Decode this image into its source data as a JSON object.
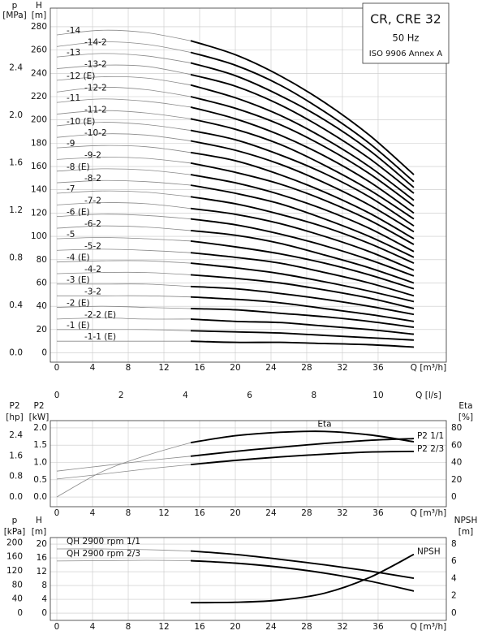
{
  "chart_data": [
    {
      "type": "line",
      "title": "CR, CRE 32",
      "subtitle": "50 Hz",
      "note": "ISO 9906 Annex A",
      "xlabel": "Q [m³/h]",
      "x": [
        0,
        5,
        10,
        15,
        20,
        25,
        30,
        35,
        40
      ],
      "xlim": [
        -0.73,
        43.64
      ],
      "xticks": [
        0,
        4,
        8,
        12,
        16,
        20,
        24,
        28,
        32,
        36
      ],
      "bold_from_x": 15,
      "grid": true,
      "color": "#000000",
      "thin_color": "#8a8a8a",
      "label_position": "stagger",
      "y_outer": {
        "label": "p",
        "unit": "[MPa]",
        "lim": [
          -0.0785,
          2.904
        ],
        "ticks": [
          {
            "value": 0,
            "label": "0.0"
          },
          0.4,
          0.8,
          1.2,
          1.6,
          {
            "value": 2,
            "label": "2.0"
          },
          2.4
        ]
      },
      "y": {
        "label": "H",
        "unit": "[m]",
        "lim": [
          -8,
          296
        ],
        "ticks": [
          0,
          20,
          40,
          60,
          80,
          100,
          120,
          140,
          160,
          180,
          200,
          220,
          240,
          260,
          280
        ]
      },
      "series": [
        {
          "name": "-14",
          "values": [
            273,
            277,
            275,
            268,
            256,
            238,
            215,
            187,
            153
          ]
        },
        {
          "name": "-14-2",
          "values": [
            263,
            267,
            265,
            258,
            247,
            230,
            207,
            180,
            147
          ]
        },
        {
          "name": "-13",
          "values": [
            254,
            257,
            255,
            249,
            238,
            221,
            200,
            174,
            142
          ]
        },
        {
          "name": "-13-2",
          "values": [
            244,
            247,
            246,
            239,
            229,
            213,
            192,
            167,
            137
          ]
        },
        {
          "name": "-12 (E)",
          "values": [
            234,
            237,
            236,
            230,
            219,
            204,
            184,
            160,
            131
          ]
        },
        {
          "name": "-12-2",
          "values": [
            224,
            228,
            226,
            220,
            210,
            196,
            177,
            154,
            126
          ]
        },
        {
          "name": "-11",
          "values": [
            215,
            218,
            216,
            211,
            201,
            187,
            169,
            147,
            120
          ]
        },
        {
          "name": "-11-2",
          "values": [
            205,
            208,
            206,
            201,
            192,
            179,
            161,
            140,
            115
          ]
        },
        {
          "name": "-10 (E)",
          "values": [
            195,
            198,
            196,
            191,
            183,
            170,
            154,
            134,
            109
          ]
        },
        {
          "name": "-10-2",
          "values": [
            185,
            188,
            187,
            182,
            174,
            162,
            146,
            127,
            104
          ]
        },
        {
          "name": "-9",
          "values": [
            176,
            178,
            177,
            172,
            165,
            153,
            138,
            120,
            98
          ]
        },
        {
          "name": "-9-2",
          "values": [
            166,
            168,
            167,
            163,
            155,
            145,
            131,
            114,
            93
          ]
        },
        {
          "name": "-8 (E)",
          "values": [
            156,
            158,
            157,
            153,
            146,
            136,
            123,
            107,
            87
          ]
        },
        {
          "name": "-8-2",
          "values": [
            146,
            148,
            147,
            144,
            137,
            128,
            115,
            100,
            82
          ]
        },
        {
          "name": "-7",
          "values": [
            137,
            139,
            138,
            134,
            128,
            119,
            108,
            94,
            77
          ]
        },
        {
          "name": "-7-2",
          "values": [
            127,
            129,
            128,
            124,
            119,
            111,
            100,
            87,
            71
          ]
        },
        {
          "name": "-6 (E)",
          "values": [
            117,
            119,
            118,
            115,
            110,
            102,
            92,
            80,
            66
          ]
        },
        {
          "name": "-6-2",
          "values": [
            107,
            109,
            108,
            105,
            101,
            94,
            84,
            73,
            60
          ]
        },
        {
          "name": "-5",
          "values": [
            98,
            99,
            98,
            96,
            91,
            85,
            77,
            67,
            55
          ]
        },
        {
          "name": "-5-2",
          "values": [
            88,
            89,
            88,
            86,
            82,
            77,
            69,
            60,
            49
          ]
        },
        {
          "name": "-4 (E)",
          "values": [
            78,
            79,
            79,
            77,
            73,
            68,
            61,
            53,
            44
          ]
        },
        {
          "name": "-4-2",
          "values": [
            68,
            69,
            69,
            67,
            64,
            60,
            54,
            47,
            38
          ]
        },
        {
          "name": "-3 (E)",
          "values": [
            59,
            59,
            59,
            57,
            55,
            51,
            46,
            40,
            33
          ]
        },
        {
          "name": "-3-2",
          "values": [
            49,
            49,
            49,
            48,
            46,
            43,
            38,
            33,
            27
          ]
        },
        {
          "name": "-2 (E)",
          "values": [
            39,
            40,
            39,
            38,
            37,
            34,
            31,
            27,
            22
          ]
        },
        {
          "name": "-2-2 (E)",
          "values": [
            29,
            30,
            29,
            29,
            27,
            26,
            23,
            20,
            16
          ]
        },
        {
          "name": "-1 (E)",
          "values": [
            20,
            20,
            20,
            19,
            18,
            17,
            15,
            13,
            11
          ]
        },
        {
          "name": "-1-1 (E)",
          "values": [
            10,
            10,
            10,
            10,
            9,
            9,
            8,
            7,
            5
          ]
        }
      ]
    },
    {
      "type": "axis",
      "xlabel": "Q [l/s]",
      "xlim": [
        -0.203,
        12.122
      ],
      "xticks": [
        0,
        2,
        4,
        6,
        8,
        10
      ]
    },
    {
      "type": "line",
      "xlabel": "Q [m³/h]",
      "x": [
        0,
        5,
        10,
        15,
        20,
        25,
        30,
        35,
        40
      ],
      "xlim": [
        -0.73,
        43.64
      ],
      "xticks": [
        0,
        4,
        8,
        12,
        16,
        20,
        24,
        28,
        32,
        36
      ],
      "bold_from_x": 15,
      "grid": true,
      "color": "#000000",
      "thin_color": "#8a8a8a",
      "y_outer": {
        "label": "P2",
        "unit": "[hp]",
        "lim": [
          -0.376,
          2.964
        ],
        "ticks": [
          {
            "value": 0,
            "label": "0.0"
          },
          0.8,
          1.6,
          2.4
        ]
      },
      "y": {
        "label": "P2",
        "unit": "[kW]",
        "lim": [
          -0.28,
          2.21
        ],
        "ticks": [
          {
            "value": 0,
            "label": "0.0"
          },
          0.5,
          {
            "value": 1,
            "label": "1.0"
          },
          1.5,
          {
            "value": 2,
            "label": "2.0"
          }
        ]
      },
      "y_right": {
        "label": "Eta",
        "unit": "[%]",
        "lim": [
          -11.3,
          88.5
        ],
        "ticks": [
          0,
          20,
          40,
          60,
          80
        ]
      },
      "series": [
        {
          "name": "Eta",
          "axis": "y_right",
          "label_position": "top",
          "values": [
            0,
            29,
            48,
            63,
            71,
            75,
            76,
            72,
            64
          ]
        },
        {
          "name": "P2 1/1",
          "axis": "y",
          "label_position": "right",
          "values": [
            0.75,
            0.9,
            1.05,
            1.18,
            1.32,
            1.44,
            1.55,
            1.64,
            1.69
          ]
        },
        {
          "name": "P2 2/3",
          "axis": "y",
          "label_position": "right",
          "values": [
            0.52,
            0.66,
            0.81,
            0.94,
            1.06,
            1.16,
            1.24,
            1.3,
            1.32
          ]
        }
      ]
    },
    {
      "type": "line",
      "xlabel": "Q [m³/h]",
      "x": [
        0,
        5,
        10,
        15,
        20,
        25,
        30,
        35,
        40
      ],
      "xlim": [
        -0.73,
        43.64
      ],
      "xticks": [
        0,
        4,
        8,
        12,
        16,
        20,
        24,
        28,
        32,
        36
      ],
      "bold_from_x": 15,
      "grid": true,
      "color": "#000000",
      "thin_color": "#8a8a8a",
      "y_outer": {
        "label": "p",
        "unit": "[kPa]",
        "lim": [
          -20.6,
          214.8
        ],
        "ticks": [
          0,
          40,
          80,
          120,
          160,
          200
        ]
      },
      "y": {
        "label": "H",
        "unit": "[m]",
        "lim": [
          -2.1,
          21.9
        ],
        "ticks": [
          0,
          4,
          8,
          12,
          16,
          20
        ]
      },
      "y_right": {
        "label": "NPSH",
        "unit": "[m]",
        "lim": [
          -0.85,
          8.75
        ],
        "ticks": [
          0,
          2,
          4,
          6,
          8
        ]
      },
      "series": [
        {
          "name": "QH 2900 rpm 1/1",
          "axis": "y",
          "label_position": "left",
          "values": [
            18.6,
            18.6,
            18.4,
            18.0,
            17.0,
            15.6,
            14.0,
            12.2,
            10.1
          ]
        },
        {
          "name": "QH 2900 rpm 2/3",
          "axis": "y",
          "label_position": "left",
          "values": [
            15.1,
            15.2,
            15.3,
            15.2,
            14.5,
            13.3,
            11.6,
            9.3,
            6.4
          ]
        },
        {
          "name": "NPSH",
          "axis": "y_right",
          "label_position": "right",
          "x": [
            15,
            20,
            25,
            30,
            35,
            40
          ],
          "values": [
            1.2,
            1.25,
            1.5,
            2.3,
            4.1,
            6.8
          ]
        }
      ]
    }
  ]
}
